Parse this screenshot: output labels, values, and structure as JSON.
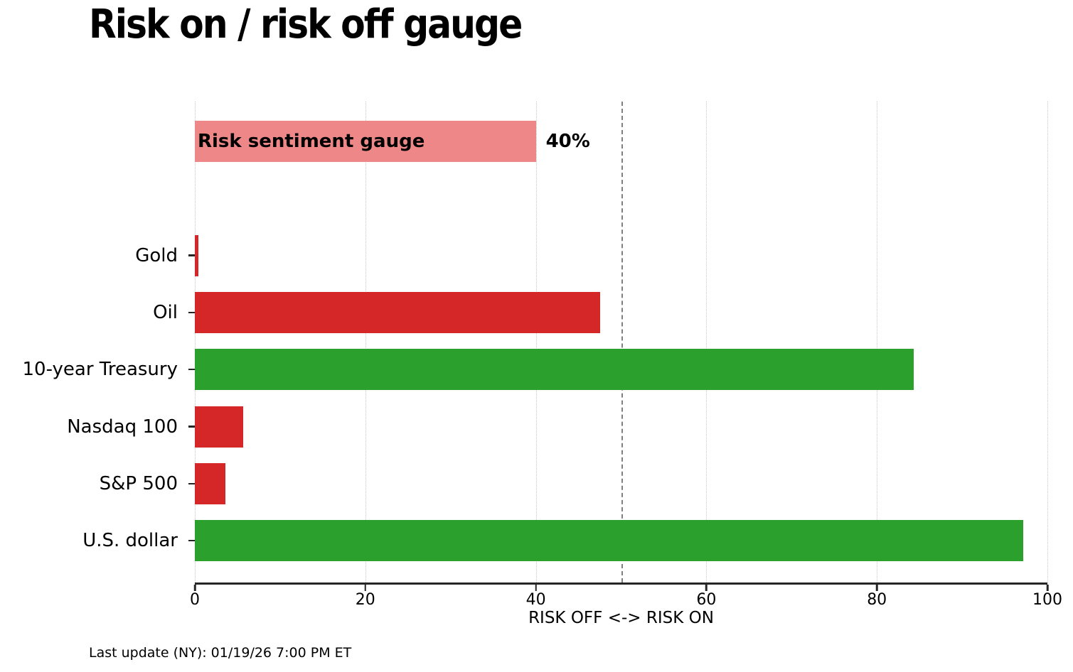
{
  "title": "Risk on / risk off gauge",
  "footer": "Last update (NY): 01/19/26 7:00 PM ET",
  "colors": {
    "risk_off_red": "#d62728",
    "risk_on_green": "#2ca02c",
    "gauge_pink": "#ee8888",
    "reference_line_gray": "#7f7f7f",
    "gridline_gray": "#c9c9c9",
    "axis_dark": "#262626"
  },
  "chart_data": {
    "type": "bar",
    "orientation": "horizontal",
    "title": "Risk on / risk off gauge",
    "xlabel": "RISK OFF <-> RISK ON",
    "ylabel": "",
    "xlim": [
      0,
      100
    ],
    "xticks": [
      0,
      20,
      40,
      60,
      80,
      100
    ],
    "grid": "vertical dotted gridlines at each x tick",
    "legend": "none",
    "reference_line": {
      "x": 50,
      "style": "dashed",
      "color": "#7f7f7f"
    },
    "gauge_bar": {
      "label": "Risk sentiment gauge",
      "value": 40,
      "value_label": "40%",
      "color": "#ee8888"
    },
    "categories": [
      "Gold",
      "Oil",
      "10-year Treasury",
      "Nasdaq 100",
      "S&P 500",
      "U.S. dollar"
    ],
    "values": [
      0.4,
      47.5,
      84.3,
      5.7,
      3.6,
      97.2
    ],
    "bar_colors": [
      "#d62728",
      "#d62728",
      "#2ca02c",
      "#d62728",
      "#d62728",
      "#2ca02c"
    ]
  }
}
